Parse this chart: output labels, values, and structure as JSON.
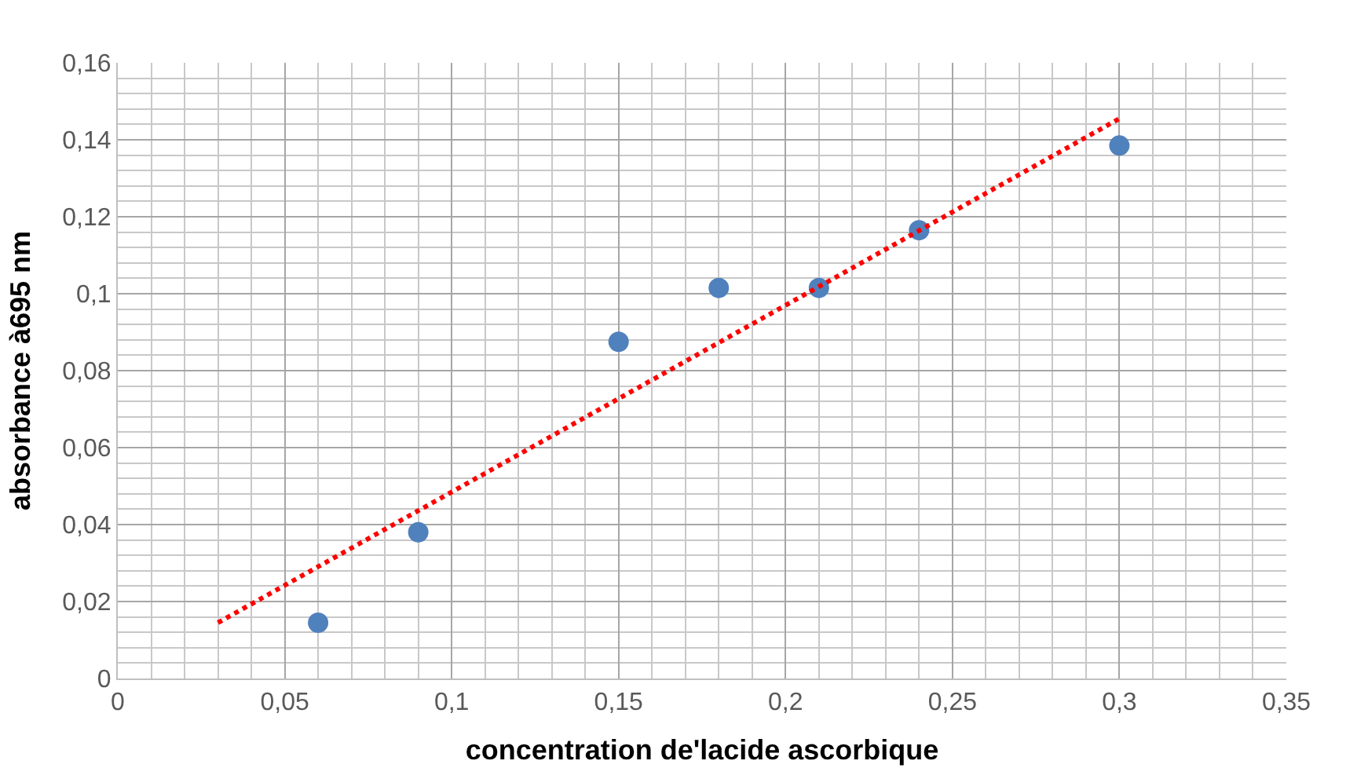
{
  "chart_data": {
    "type": "scatter",
    "xlabel": "concentration de'lacide ascorbique",
    "ylabel": "absorbance à695 nm",
    "xlim": [
      0,
      0.35
    ],
    "xticks": [
      0,
      {
        "value": 0.05,
        "label": "0,05"
      },
      {
        "value": 0.1,
        "label": "0,1"
      },
      {
        "value": 0.15,
        "label": "0,15"
      },
      {
        "value": 0.2,
        "label": "0,2"
      },
      {
        "value": 0.25,
        "label": "0,25"
      },
      {
        "value": 0.3,
        "label": "0,3"
      },
      {
        "value": 0.35,
        "label": "0,35"
      }
    ],
    "ylim": [
      0,
      0.16
    ],
    "yticks": [
      0,
      {
        "value": 0.02,
        "label": "0,02"
      },
      {
        "value": 0.04,
        "label": "0,04"
      },
      {
        "value": 0.06,
        "label": "0,06"
      },
      {
        "value": 0.08,
        "label": "0,08"
      },
      {
        "value": 0.1,
        "label": "0,1"
      },
      {
        "value": 0.12,
        "label": "0,12"
      },
      {
        "value": 0.14,
        "label": "0,14"
      },
      {
        "value": 0.16,
        "label": "0,16"
      }
    ],
    "grid": true,
    "series": [
      {
        "color": "#4f81bd",
        "marker": "circle",
        "x": [
          0.06,
          0.09,
          0.15,
          0.18,
          0.21,
          0.24,
          0.3
        ],
        "values": [
          0.0145,
          0.038,
          0.0875,
          0.1015,
          0.1015,
          0.1165,
          0.1385
        ]
      },
      {
        "type": "line",
        "color": "#ff0000",
        "line_style": "dotted",
        "x": [
          0.03,
          0.3
        ],
        "values": [
          0.0145,
          0.1455
        ]
      }
    ]
  }
}
